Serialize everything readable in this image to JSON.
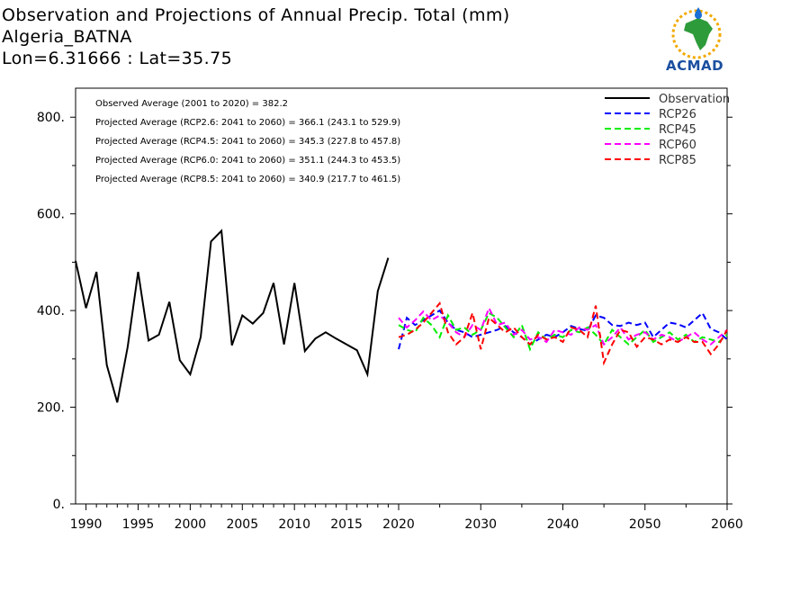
{
  "header": {
    "title": "Observation and Projections of Annual Precip. Total (mm)",
    "location": "Algeria_BATNA",
    "coords": "Lon=6.31666 : Lat=35.75"
  },
  "logo": {
    "text": "ACMAD"
  },
  "annotations": [
    "Observed Average (2001 to 2020) = 382.2",
    "Projected Average (RCP2.6: 2041 to 2060) = 366.1 (243.1 to 529.9)",
    "Projected Average (RCP4.5: 2041 to 2060) = 345.3 (227.8 to 457.8)",
    "Projected Average (RCP6.0: 2041 to 2060) = 351.1 (244.3 to 453.5)",
    "Projected Average (RCP8.5: 2041 to 2060) = 340.9 (217.7 to 461.5)"
  ],
  "chart_data": {
    "type": "line",
    "title": "Observation and Projections of Annual Precip. Total (mm)",
    "xlim": [
      1989,
      2060
    ],
    "ylim": [
      0,
      860
    ],
    "yticks": [
      0,
      200,
      400,
      600,
      800
    ],
    "ytick_labels": [
      "0.",
      "200.",
      "400.",
      "600.",
      "800."
    ],
    "xticks_obs": [
      1990,
      1995,
      2000,
      2005,
      2010,
      2015,
      2020
    ],
    "xticks_proj": [
      2030,
      2040,
      2050,
      2060
    ],
    "legend_position": "top-right",
    "series": [
      {
        "name": "Observation",
        "color": "#000000",
        "dash": "solid",
        "x": [
          1989,
          1990,
          1991,
          1992,
          1993,
          1994,
          1995,
          1996,
          1997,
          1998,
          1999,
          2000,
          2001,
          2002,
          2003,
          2004,
          2005,
          2006,
          2007,
          2008,
          2009,
          2010,
          2011,
          2012,
          2013,
          2014,
          2015,
          2016,
          2017,
          2018,
          2019,
          2020
        ],
        "y": [
          503,
          405,
          480,
          287,
          210,
          325,
          480,
          338,
          350,
          418,
          297,
          268,
          345,
          543,
          565,
          328,
          390,
          373,
          395,
          457,
          330,
          457,
          316,
          342,
          355,
          342,
          330,
          318,
          268,
          440,
          509,
          null
        ]
      },
      {
        "name": "RCP26",
        "color": "#0000ff",
        "dash": "dashed",
        "x": [
          2020,
          2021,
          2022,
          2023,
          2024,
          2025,
          2026,
          2027,
          2028,
          2029,
          2030,
          2031,
          2032,
          2033,
          2034,
          2035,
          2036,
          2037,
          2038,
          2039,
          2040,
          2041,
          2042,
          2043,
          2044,
          2045,
          2046,
          2047,
          2048,
          2049,
          2050,
          2051,
          2052,
          2053,
          2054,
          2055,
          2056,
          2057,
          2058,
          2059,
          2060
        ],
        "y": [
          320,
          385,
          370,
          380,
          390,
          400,
          375,
          360,
          355,
          345,
          350,
          355,
          360,
          368,
          355,
          345,
          330,
          340,
          350,
          345,
          355,
          368,
          362,
          358,
          390,
          385,
          370,
          368,
          375,
          370,
          375,
          345,
          360,
          375,
          372,
          365,
          380,
          395,
          362,
          355,
          340
        ]
      },
      {
        "name": "RCP45",
        "color": "#00ee00",
        "dash": "dashed",
        "x": [
          2020,
          2021,
          2022,
          2023,
          2024,
          2025,
          2026,
          2027,
          2028,
          2029,
          2030,
          2031,
          2032,
          2033,
          2034,
          2035,
          2036,
          2037,
          2038,
          2039,
          2040,
          2041,
          2042,
          2043,
          2044,
          2045,
          2046,
          2047,
          2048,
          2049,
          2050,
          2051,
          2052,
          2053,
          2054,
          2055,
          2056,
          2057,
          2058,
          2059,
          2060
        ],
        "y": [
          370,
          360,
          355,
          385,
          370,
          345,
          390,
          360,
          365,
          350,
          360,
          395,
          385,
          365,
          345,
          370,
          320,
          355,
          340,
          350,
          345,
          360,
          355,
          365,
          350,
          330,
          360,
          345,
          330,
          345,
          360,
          335,
          345,
          355,
          340,
          350,
          335,
          345,
          340,
          335,
          350
        ]
      },
      {
        "name": "RCP60",
        "color": "#ff00ff",
        "dash": "dashed",
        "x": [
          2020,
          2021,
          2022,
          2023,
          2024,
          2025,
          2026,
          2027,
          2028,
          2029,
          2030,
          2031,
          2032,
          2033,
          2034,
          2035,
          2036,
          2037,
          2038,
          2039,
          2040,
          2041,
          2042,
          2043,
          2044,
          2045,
          2046,
          2047,
          2048,
          2049,
          2050,
          2051,
          2052,
          2053,
          2054,
          2055,
          2056,
          2057,
          2058,
          2059,
          2060
        ],
        "y": [
          385,
          365,
          380,
          398,
          380,
          390,
          375,
          355,
          345,
          370,
          360,
          405,
          370,
          375,
          350,
          360,
          340,
          345,
          335,
          360,
          355,
          350,
          365,
          360,
          370,
          330,
          345,
          365,
          340,
          350,
          355,
          340,
          350,
          345,
          335,
          345,
          355,
          340,
          330,
          345,
          360
        ]
      },
      {
        "name": "RCP85",
        "color": "#ff0000",
        "dash": "dashed",
        "x": [
          2020,
          2021,
          2022,
          2023,
          2024,
          2025,
          2026,
          2027,
          2028,
          2029,
          2030,
          2031,
          2032,
          2033,
          2034,
          2035,
          2036,
          2037,
          2038,
          2039,
          2040,
          2041,
          2042,
          2043,
          2044,
          2045,
          2046,
          2047,
          2048,
          2049,
          2050,
          2051,
          2052,
          2053,
          2054,
          2055,
          2056,
          2057,
          2058,
          2059,
          2060
        ],
        "y": [
          345,
          350,
          360,
          375,
          395,
          415,
          355,
          330,
          345,
          395,
          320,
          385,
          370,
          355,
          365,
          345,
          330,
          350,
          340,
          345,
          335,
          365,
          360,
          345,
          410,
          292,
          330,
          360,
          355,
          325,
          345,
          340,
          330,
          340,
          335,
          345,
          335,
          335,
          310,
          330,
          360
        ]
      }
    ]
  }
}
